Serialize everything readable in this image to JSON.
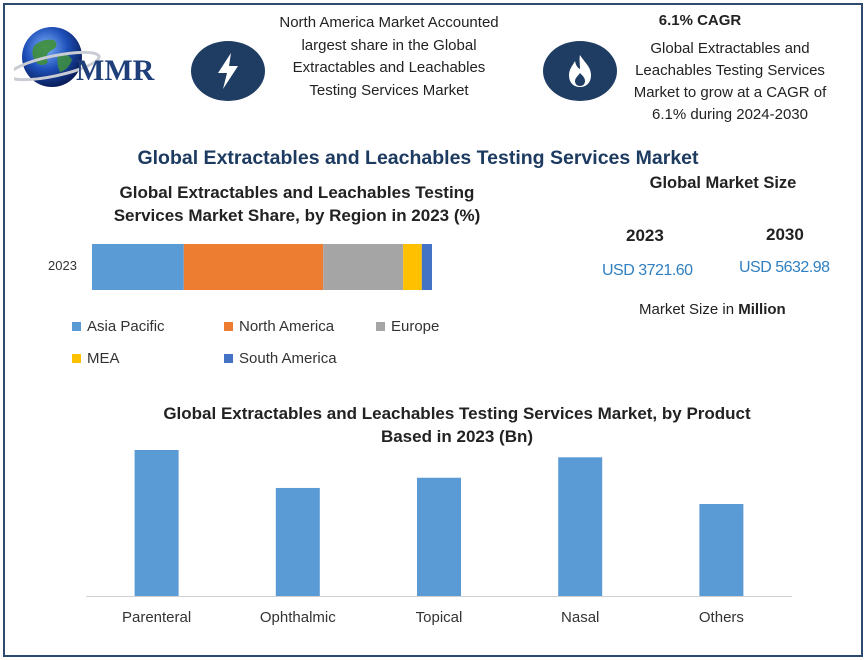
{
  "logo": {
    "text": "MMR"
  },
  "info_left": {
    "icon": "lightning-bolt-icon",
    "text": "North America Market Accounted largest share in the Global Extractables and Leachables Testing Services Market"
  },
  "info_right": {
    "icon": "flame-icon",
    "title": "6.1% CAGR",
    "text": "Global Extractables and Leachables Testing Services Market to grow at a CAGR of 6.1% during 2024-2030"
  },
  "main_title": "Global Extractables and Leachables Testing Services Market",
  "market_size": {
    "title": "Global Market Size",
    "year1": "2023",
    "value1": "USD 3721.60",
    "year2": "2030",
    "value2": "USD 5632.98",
    "note_prefix": "Market Size in ",
    "note_bold": "Million"
  },
  "chart_data": [
    {
      "type": "bar",
      "orientation": "horizontal-stacked",
      "title": "Global Extractables and Leachables Testing Services Market Share, by Region in 2023 (%)",
      "categories": [
        "2023"
      ],
      "series": [
        {
          "name": "Asia Pacific",
          "values": [
            27
          ],
          "color": "#5b9bd5"
        },
        {
          "name": "North America",
          "values": [
            41
          ],
          "color": "#ed7d31"
        },
        {
          "name": "Europe",
          "values": [
            23.5
          ],
          "color": "#a5a5a5"
        },
        {
          "name": "MEA",
          "values": [
            5.5
          ],
          "color": "#ffc000"
        },
        {
          "name": "South America",
          "values": [
            3
          ],
          "color": "#4472c4"
        }
      ],
      "xlim": [
        0,
        100
      ],
      "legend": "bottom"
    },
    {
      "type": "bar",
      "title": "Global Extractables and Leachables Testing Services Market, by Product Based in 2023 (Bn)",
      "categories": [
        "Parenteral",
        "Ophthalmic",
        "Topical",
        "Nasal",
        "Others"
      ],
      "values": [
        1.0,
        0.74,
        0.81,
        0.95,
        0.63
      ],
      "color": "#5b9bd5",
      "ylim": [
        0,
        1.0
      ],
      "grid": false
    }
  ]
}
